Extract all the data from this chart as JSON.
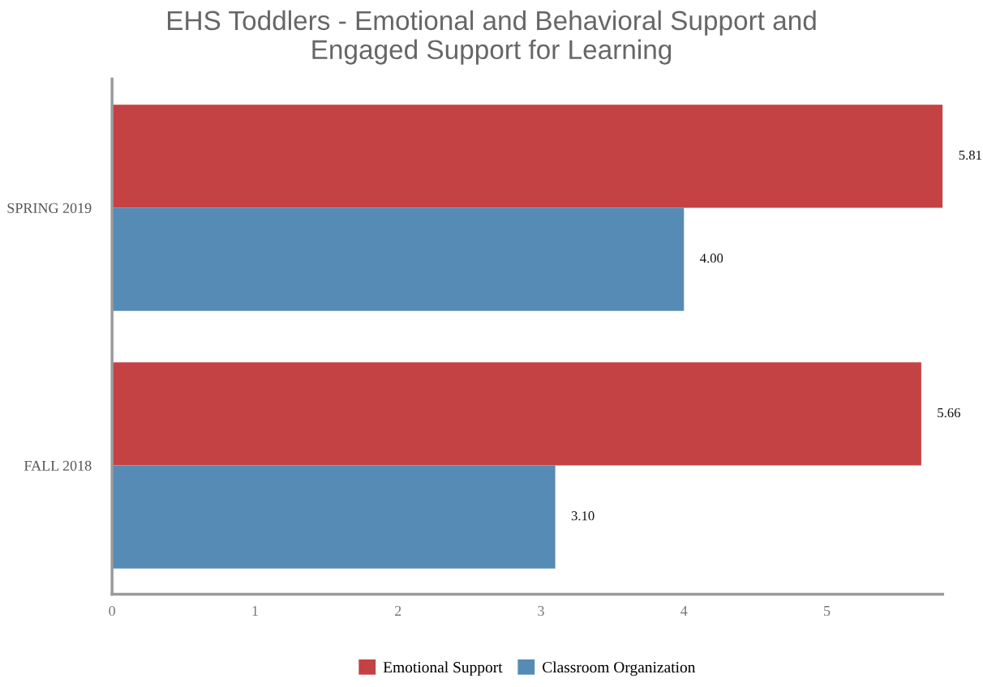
{
  "chart_data": {
    "type": "bar",
    "orientation": "horizontal",
    "title": "EHS Toddlers - Emotional and Behavioral Support and\nEngaged Support for Learning",
    "categories": [
      "SPRING 2019",
      "FALL 2018"
    ],
    "series": [
      {
        "name": "Emotional Support",
        "color": "#c44243",
        "values": [
          5.81,
          5.66
        ],
        "value_labels": [
          "5.81",
          "5.66"
        ]
      },
      {
        "name": "Classroom Organization",
        "color": "#568bb5",
        "values": [
          4.0,
          3.1
        ],
        "value_labels": [
          "4.00",
          "3.10"
        ]
      }
    ],
    "xlim": [
      0,
      5.81
    ],
    "xticks": [
      0,
      1,
      2,
      3,
      4,
      5
    ],
    "grid": false,
    "legend": "bottom"
  }
}
